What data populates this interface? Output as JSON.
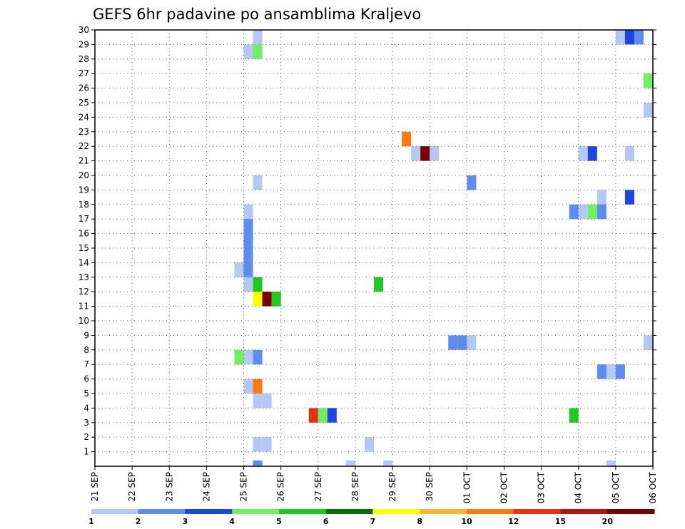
{
  "chart_data": {
    "type": "heatmap",
    "title": "GEFS 6hr padavine po ansamblima Kraljevo",
    "xlabel": "",
    "ylabel": "",
    "x_tick_labels": [
      "21 SEP",
      "22 SEP",
      "23 SEP",
      "24 SEP",
      "25 SEP",
      "26 SEP",
      "27 SEP",
      "28 SEP",
      "29 SEP",
      "30 SEP",
      "01 OCT",
      "02 OCT",
      "03 OCT",
      "04 OCT",
      "05 OCT",
      "06 OCT"
    ],
    "x_range_days": [
      0,
      15
    ],
    "y_tick_labels": [
      "1",
      "2",
      "3",
      "4",
      "5",
      "6",
      "7",
      "8",
      "9",
      "10",
      "11",
      "12",
      "13",
      "14",
      "15",
      "16",
      "17",
      "18",
      "19",
      "20",
      "21",
      "22",
      "23",
      "24",
      "25",
      "26",
      "27",
      "28",
      "29",
      "30"
    ],
    "y_range": [
      0,
      30
    ],
    "grid": true,
    "color_levels": [
      "1",
      "2",
      "3",
      "4",
      "5",
      "6",
      "7",
      "8",
      "10",
      "12",
      "15",
      "20"
    ],
    "color_scale": [
      "#b4c8f5",
      "#5f8cf0",
      "#1c46dc",
      "#6ef060",
      "#1ec81e",
      "#0a6e0a",
      "#ffff00",
      "#ffb432",
      "#ff7814",
      "#e63214",
      "#b41414",
      "#780000"
    ],
    "cells_note": "each cell = [day offset from 21 SEP in 6h steps, ensemble member, color bin index 0-11]",
    "cells": [
      [
        4.25,
        29,
        0
      ],
      [
        4.0,
        28,
        0
      ],
      [
        4.25,
        28,
        3
      ],
      [
        14.0,
        29,
        0
      ],
      [
        14.25,
        29,
        2
      ],
      [
        14.5,
        29,
        1
      ],
      [
        14.75,
        26,
        3
      ],
      [
        14.75,
        24,
        0
      ],
      [
        8.25,
        22,
        8
      ],
      [
        8.5,
        21,
        0
      ],
      [
        8.75,
        21,
        11
      ],
      [
        9.0,
        21,
        0
      ],
      [
        13.0,
        21,
        0
      ],
      [
        13.25,
        21,
        2
      ],
      [
        14.25,
        21,
        0
      ],
      [
        4.25,
        19,
        0
      ],
      [
        10.0,
        19,
        1
      ],
      [
        14.25,
        18,
        2
      ],
      [
        13.5,
        18,
        0
      ],
      [
        12.75,
        17,
        1
      ],
      [
        13.0,
        17,
        0
      ],
      [
        13.25,
        17,
        3
      ],
      [
        13.5,
        17,
        1
      ],
      [
        4.0,
        17,
        0
      ],
      [
        4.0,
        16,
        1
      ],
      [
        4.0,
        15,
        1
      ],
      [
        4.0,
        14,
        1
      ],
      [
        3.75,
        13,
        0
      ],
      [
        4.0,
        13,
        1
      ],
      [
        4.0,
        12,
        0
      ],
      [
        4.25,
        12,
        4
      ],
      [
        7.5,
        12,
        4
      ],
      [
        4.25,
        11,
        6
      ],
      [
        4.5,
        11,
        11
      ],
      [
        4.75,
        11,
        4
      ],
      [
        9.5,
        8,
        1
      ],
      [
        9.75,
        8,
        1
      ],
      [
        10.0,
        8,
        0
      ],
      [
        14.75,
        8,
        0
      ],
      [
        3.75,
        7,
        3
      ],
      [
        4.0,
        7,
        0
      ],
      [
        4.25,
        7,
        1
      ],
      [
        13.5,
        6,
        1
      ],
      [
        13.75,
        6,
        0
      ],
      [
        14.0,
        6,
        1
      ],
      [
        4.0,
        5,
        0
      ],
      [
        4.25,
        5,
        8
      ],
      [
        4.25,
        4,
        0
      ],
      [
        4.5,
        4,
        0
      ],
      [
        5.75,
        3,
        9
      ],
      [
        6.0,
        3,
        3
      ],
      [
        6.25,
        3,
        2
      ],
      [
        12.75,
        3,
        4
      ],
      [
        4.25,
        1,
        0
      ],
      [
        4.5,
        1,
        0
      ],
      [
        7.25,
        1,
        0
      ],
      [
        4.25,
        0,
        1
      ],
      [
        6.75,
        0,
        0
      ],
      [
        7.75,
        0,
        0
      ],
      [
        13.75,
        0,
        0
      ]
    ]
  }
}
